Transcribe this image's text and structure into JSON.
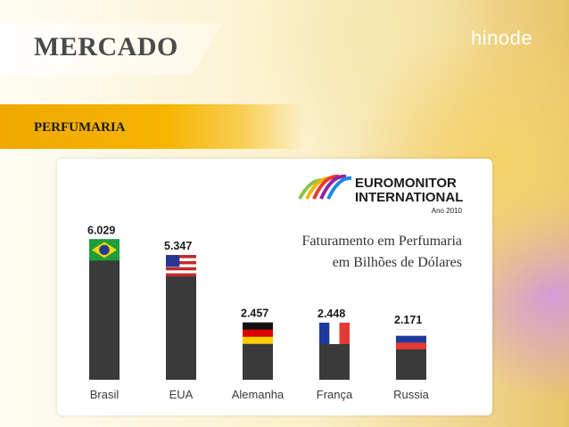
{
  "slide": {
    "title": "MERCADO",
    "brand": "hinode",
    "section": "PERFUMARIA"
  },
  "source": {
    "name_line1": "EUROMONITOR",
    "name_line2": "INTERNATIONAL",
    "year": "Ano 2010"
  },
  "chart_data": {
    "type": "bar",
    "title_line1": "Faturamento em Perfumaria",
    "title_line2": "em Bilhões de Dólares",
    "categories": [
      "Brasil",
      "EUA",
      "Alemanha",
      "França",
      "Russia"
    ],
    "values": [
      6.029,
      5.347,
      2.457,
      2.448,
      2.171
    ],
    "value_labels": [
      "6.029",
      "5.347",
      "2.457",
      "2.448",
      "2.171"
    ],
    "flags": [
      "brazil-flag",
      "usa-flag",
      "germany-flag",
      "france-flag",
      "russia-flag"
    ],
    "ylim": [
      0,
      6.5
    ],
    "grid": false,
    "bar_color": "#3a3a3a"
  }
}
